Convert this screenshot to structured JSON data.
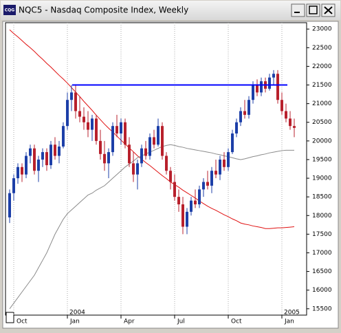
{
  "window": {
    "icon": "CQG",
    "title": "NQC5 - Nasdaq Composite Index, Weekly"
  },
  "chart_data": {
    "type": "candlestick",
    "categories": [
      null,
      "Oct",
      null,
      null,
      null,
      null,
      null,
      null,
      null,
      null,
      null,
      null,
      null,
      null,
      "Jan",
      null,
      null,
      null,
      null,
      null,
      null,
      null,
      null,
      null,
      null,
      null,
      null,
      "Apr",
      null,
      null,
      null,
      null,
      null,
      null,
      null,
      null,
      null,
      null,
      null,
      null,
      "Jul",
      null,
      null,
      null,
      null,
      null,
      null,
      null,
      null,
      null,
      null,
      null,
      null,
      "Oct",
      null,
      null,
      null,
      null,
      null,
      null,
      null,
      null,
      null,
      null,
      null,
      null,
      "Jan",
      null,
      null,
      null
    ],
    "years": [
      null,
      null,
      null,
      null,
      null,
      null,
      null,
      null,
      null,
      null,
      null,
      null,
      null,
      null,
      "2004",
      null,
      null,
      null,
      null,
      null,
      null,
      null,
      null,
      null,
      null,
      null,
      null,
      null,
      null,
      null,
      null,
      null,
      null,
      null,
      null,
      null,
      null,
      null,
      null,
      null,
      null,
      null,
      null,
      null,
      null,
      null,
      null,
      null,
      null,
      null,
      null,
      null,
      null,
      null,
      null,
      null,
      null,
      null,
      null,
      null,
      null,
      null,
      null,
      null,
      null,
      null,
      "2005",
      null,
      null,
      null
    ],
    "candles": [
      [
        17950,
        18700,
        17800,
        18600
      ],
      [
        18600,
        19100,
        18400,
        19000
      ],
      [
        19000,
        19400,
        18850,
        19300
      ],
      [
        19300,
        19400,
        18900,
        19100
      ],
      [
        19100,
        19700,
        19000,
        19600
      ],
      [
        19600,
        19900,
        19400,
        19800
      ],
      [
        19800,
        19900,
        19100,
        19200
      ],
      [
        19200,
        19600,
        18900,
        19500
      ],
      [
        19500,
        19800,
        19300,
        19700
      ],
      [
        19700,
        19800,
        19200,
        19350
      ],
      [
        19350,
        20000,
        19250,
        19900
      ],
      [
        19900,
        20100,
        19500,
        19600
      ],
      [
        19600,
        20000,
        19400,
        19850
      ],
      [
        19850,
        20500,
        19800,
        20400
      ],
      [
        20400,
        21300,
        20300,
        21100
      ],
      [
        21100,
        21500,
        20800,
        21300
      ],
      [
        21300,
        21500,
        20600,
        20800
      ],
      [
        20800,
        21200,
        20500,
        20650
      ],
      [
        20650,
        20900,
        20300,
        20500
      ],
      [
        20500,
        20800,
        20100,
        20300
      ],
      [
        20300,
        20700,
        20000,
        20600
      ],
      [
        20600,
        20700,
        19900,
        20000
      ],
      [
        20000,
        20300,
        19500,
        19650
      ],
      [
        19650,
        20000,
        19200,
        19400
      ],
      [
        19400,
        19800,
        19000,
        19700
      ],
      [
        19700,
        20500,
        19600,
        20400
      ],
      [
        20400,
        20700,
        20100,
        20200
      ],
      [
        20200,
        20600,
        19900,
        20500
      ],
      [
        20500,
        20600,
        19800,
        19900
      ],
      [
        19900,
        20100,
        19300,
        19400
      ],
      [
        19400,
        19700,
        18900,
        19100
      ],
      [
        19100,
        19500,
        18700,
        19400
      ],
      [
        19400,
        19900,
        19300,
        19800
      ],
      [
        19800,
        20000,
        19500,
        19600
      ],
      [
        19600,
        20200,
        19500,
        20100
      ],
      [
        20100,
        20300,
        19800,
        19900
      ],
      [
        19900,
        20600,
        19850,
        20400
      ],
      [
        20400,
        20500,
        19500,
        19600
      ],
      [
        19600,
        19700,
        19100,
        19200
      ],
      [
        19200,
        19300,
        18700,
        18900
      ],
      [
        18900,
        19100,
        18400,
        18500
      ],
      [
        18500,
        18700,
        18100,
        18300
      ],
      [
        18300,
        18500,
        17500,
        17700
      ],
      [
        17700,
        18200,
        17500,
        18100
      ],
      [
        18100,
        18500,
        18000,
        18400
      ],
      [
        18400,
        18700,
        18200,
        18300
      ],
      [
        18300,
        18800,
        18200,
        18700
      ],
      [
        18700,
        19000,
        18500,
        18900
      ],
      [
        18900,
        19200,
        18700,
        18800
      ],
      [
        18800,
        19300,
        18600,
        19200
      ],
      [
        19200,
        19500,
        19000,
        19100
      ],
      [
        19100,
        19600,
        18950,
        19500
      ],
      [
        19500,
        19700,
        19200,
        19300
      ],
      [
        19300,
        19800,
        19200,
        19700
      ],
      [
        19700,
        20300,
        19650,
        20200
      ],
      [
        20200,
        20600,
        20100,
        20500
      ],
      [
        20500,
        20900,
        20400,
        20800
      ],
      [
        20800,
        21100,
        20600,
        20700
      ],
      [
        20700,
        21200,
        20600,
        21100
      ],
      [
        21100,
        21600,
        21000,
        21500
      ],
      [
        21500,
        21650,
        21200,
        21300
      ],
      [
        21300,
        21700,
        21200,
        21600
      ],
      [
        21600,
        21700,
        21300,
        21400
      ],
      [
        21400,
        21800,
        21350,
        21700
      ],
      [
        21700,
        21900,
        21500,
        21800
      ],
      [
        21800,
        21900,
        21000,
        21100
      ],
      [
        21100,
        21300,
        20700,
        20800
      ],
      [
        20800,
        21000,
        20500,
        20600
      ],
      [
        20600,
        20800,
        20300,
        20400
      ],
      [
        20400,
        20600,
        20100,
        20350
      ]
    ],
    "up_color": "#1c3fa8",
    "down_color": "#b8202c",
    "lines": [
      {
        "color": "#e01010",
        "values": [
          22980,
          22880,
          22790,
          22690,
          22590,
          22500,
          22400,
          22290,
          22190,
          22080,
          21980,
          21870,
          21760,
          21660,
          21550,
          21430,
          21310,
          21190,
          21060,
          20940,
          20820,
          20690,
          20570,
          20450,
          20340,
          20240,
          20130,
          20020,
          19920,
          19810,
          19710,
          19600,
          19510,
          19420,
          19340,
          19250,
          19160,
          19070,
          18990,
          18900,
          18830,
          18760,
          18680,
          18610,
          18540,
          18470,
          18390,
          18320,
          18250,
          18190,
          18140,
          18080,
          18020,
          17970,
          17910,
          17860,
          17800,
          17770,
          17750,
          17720,
          17700,
          17680,
          17650,
          17650,
          17660,
          17670,
          17670,
          17680,
          17690,
          17700
        ]
      },
      {
        "color": "#8a8a8a",
        "values": [
          15500,
          15650,
          15800,
          15950,
          16100,
          16250,
          16400,
          16600,
          16800,
          17000,
          17250,
          17500,
          17700,
          17900,
          18050,
          18150,
          18250,
          18350,
          18450,
          18550,
          18600,
          18680,
          18740,
          18800,
          18900,
          19000,
          19100,
          19200,
          19300,
          19380,
          19460,
          19550,
          19600,
          19650,
          19700,
          19750,
          19800,
          19850,
          19880,
          19900,
          19880,
          19850,
          19830,
          19800,
          19780,
          19760,
          19740,
          19720,
          19700,
          19680,
          19650,
          19630,
          19600,
          19580,
          19550,
          19520,
          19500,
          19520,
          19550,
          19580,
          19600,
          19630,
          19650,
          19680,
          19700,
          19720,
          19740,
          19750,
          19750,
          19750
        ]
      }
    ],
    "hline": {
      "value": 21500,
      "color": "#0000ff"
    },
    "ylim": [
      15330,
      23170
    ],
    "yticks": [
      15500,
      16000,
      16500,
      17000,
      17500,
      18000,
      18500,
      19000,
      19500,
      20000,
      20500,
      21000,
      21500,
      22000,
      22500,
      23000
    ]
  }
}
